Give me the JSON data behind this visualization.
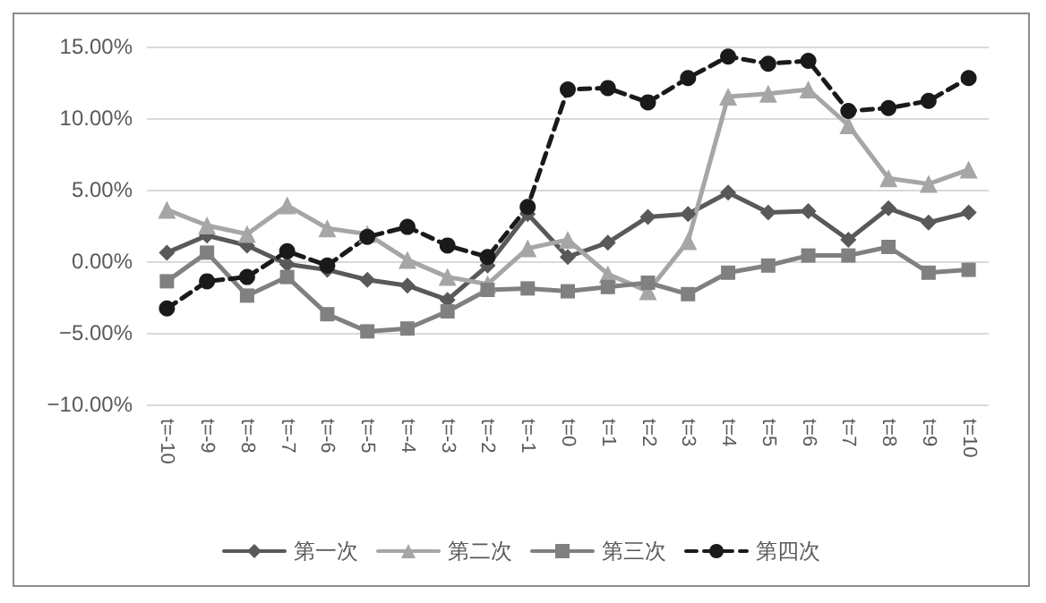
{
  "chart_data": {
    "type": "line",
    "categories": [
      "t=-10",
      "t=-9",
      "t=-8",
      "t=-7",
      "t=-6",
      "t=-5",
      "t=-4",
      "t=-3",
      "t=-2",
      "t=-1",
      "t=0",
      "t=1",
      "t=2",
      "t=3",
      "t=4",
      "t=5",
      "t=6",
      "t=7",
      "t=8",
      "t=9",
      "t=10"
    ],
    "series": [
      {
        "name": "第一次",
        "color": "#595959",
        "marker": "diamond",
        "line_style": "solid",
        "values": [
          0.6,
          1.8,
          1.1,
          -0.2,
          -0.6,
          -1.3,
          -1.7,
          -2.7,
          -0.3,
          3.3,
          0.3,
          1.3,
          3.1,
          3.3,
          4.8,
          3.4,
          3.5,
          1.5,
          3.7,
          2.7,
          3.4
        ]
      },
      {
        "name": "第二次",
        "color": "#a6a6a6",
        "marker": "triangle",
        "line_style": "solid",
        "values": [
          3.6,
          2.5,
          1.9,
          3.9,
          2.3,
          1.9,
          0.1,
          -1.1,
          -1.6,
          0.9,
          1.5,
          -0.9,
          -2.1,
          1.4,
          11.5,
          11.7,
          12.0,
          9.5,
          5.8,
          5.4,
          6.4
        ]
      },
      {
        "name": "第三次",
        "color": "#808080",
        "marker": "square",
        "line_style": "solid",
        "values": [
          -1.4,
          0.6,
          -2.4,
          -1.1,
          -3.7,
          -4.9,
          -4.7,
          -3.5,
          -2.0,
          -1.9,
          -2.1,
          -1.8,
          -1.5,
          -2.3,
          -0.8,
          -0.3,
          0.4,
          0.4,
          1.0,
          -0.8,
          -0.6
        ]
      },
      {
        "name": "第四次",
        "color": "#1a1a1a",
        "marker": "circle",
        "line_style": "dashed",
        "values": [
          -3.3,
          -1.4,
          -1.1,
          0.7,
          -0.3,
          1.7,
          2.4,
          1.1,
          0.3,
          3.8,
          12.0,
          12.1,
          11.1,
          12.8,
          14.3,
          13.8,
          14.0,
          10.5,
          10.7,
          11.2,
          12.8
        ]
      }
    ],
    "ylim": [
      -10,
      15
    ],
    "yticks": [
      {
        "value": -10,
        "label": "−10.00%"
      },
      {
        "value": -5,
        "label": "−5.00%"
      },
      {
        "value": 0,
        "label": "0.00%"
      },
      {
        "value": 5,
        "label": "5.00%"
      },
      {
        "value": 10,
        "label": "10.00%"
      },
      {
        "value": 15,
        "label": "15.00%"
      }
    ],
    "grid": "y",
    "legend": "bottom"
  }
}
